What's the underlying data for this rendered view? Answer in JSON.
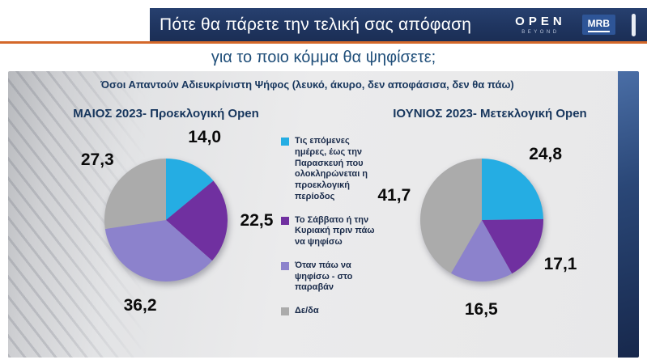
{
  "header": {
    "title": "Πότε θα πάρετε την τελική σας απόφαση",
    "subtitle": "για το ποιο κόμμα θα ψηφίσετε;",
    "open_logo": "OPEN",
    "open_logo_sub": "BEYOND",
    "mrb_logo": "MRB"
  },
  "panel": {
    "note": "Όσοι Απαντούν Αδιευκρίνιστη  Ψήφος (λευκό, άκυρο, δεν αποφάσισα, δεν θα πάω)"
  },
  "colors": {
    "header_navy": "#1f3560",
    "accent_orange": "#d4682a",
    "title_blue": "#17365d",
    "cyan": "#25ade3",
    "purple": "#7030a0",
    "light_purple": "#8c82cc",
    "gray": "#ababab"
  },
  "legend": {
    "items": [
      {
        "label": "Τις επόμενες ημέρες, έως την Παρασκευή που ολοκληρώνεται η προεκλογική περίοδος",
        "color": "#25ade3"
      },
      {
        "label": "Το Σάββατο ή την Κυριακή πριν πάω να ψηφίσω",
        "color": "#7030a0"
      },
      {
        "label": "Όταν πάω να ψηφίσω - στο παραβάν",
        "color": "#8c82cc"
      },
      {
        "label": "Δε/δα",
        "color": "#ababab"
      }
    ]
  },
  "chart_data": [
    {
      "type": "pie",
      "title": "ΜΑΙΟΣ 2023- Προεκλογική Open",
      "categories": [
        "Τις επόμενες ημέρες, έως την Παρασκευή που ολοκληρώνεται η προεκλογική περίοδος",
        "Το Σάββατο ή την Κυριακή πριν πάω να ψηφίσω",
        "Όταν πάω να ψηφίσω - στο παραβάν",
        "Δε/δα"
      ],
      "values": [
        14.0,
        22.5,
        36.2,
        27.3
      ],
      "display_values": [
        "14,0",
        "22,5",
        "36,2",
        "27,3"
      ],
      "colors": [
        "#25ade3",
        "#7030a0",
        "#8c82cc",
        "#ababab"
      ],
      "start_angle": "12 o'clock, clockwise",
      "legend_position": "center-between-charts"
    },
    {
      "type": "pie",
      "title": "ΙΟΥΝΙΟΣ 2023- Μετεκλογική Open",
      "categories": [
        "Τις επόμενες ημέρες, έως την Παρασκευή που ολοκληρώνεται η προεκλογική περίοδος",
        "Το Σάββατο ή την Κυριακή πριν πάω να ψηφίσω",
        "Όταν πάω να ψηφίσω - στο παραβάν",
        "Δε/δα"
      ],
      "values": [
        24.8,
        17.1,
        16.5,
        41.7
      ],
      "display_values": [
        "24,8",
        "17,1",
        "16,5",
        "41,7"
      ],
      "colors": [
        "#25ade3",
        "#7030a0",
        "#8c82cc",
        "#ababab"
      ],
      "start_angle": "12 o'clock, clockwise",
      "legend_position": "center-between-charts"
    }
  ]
}
